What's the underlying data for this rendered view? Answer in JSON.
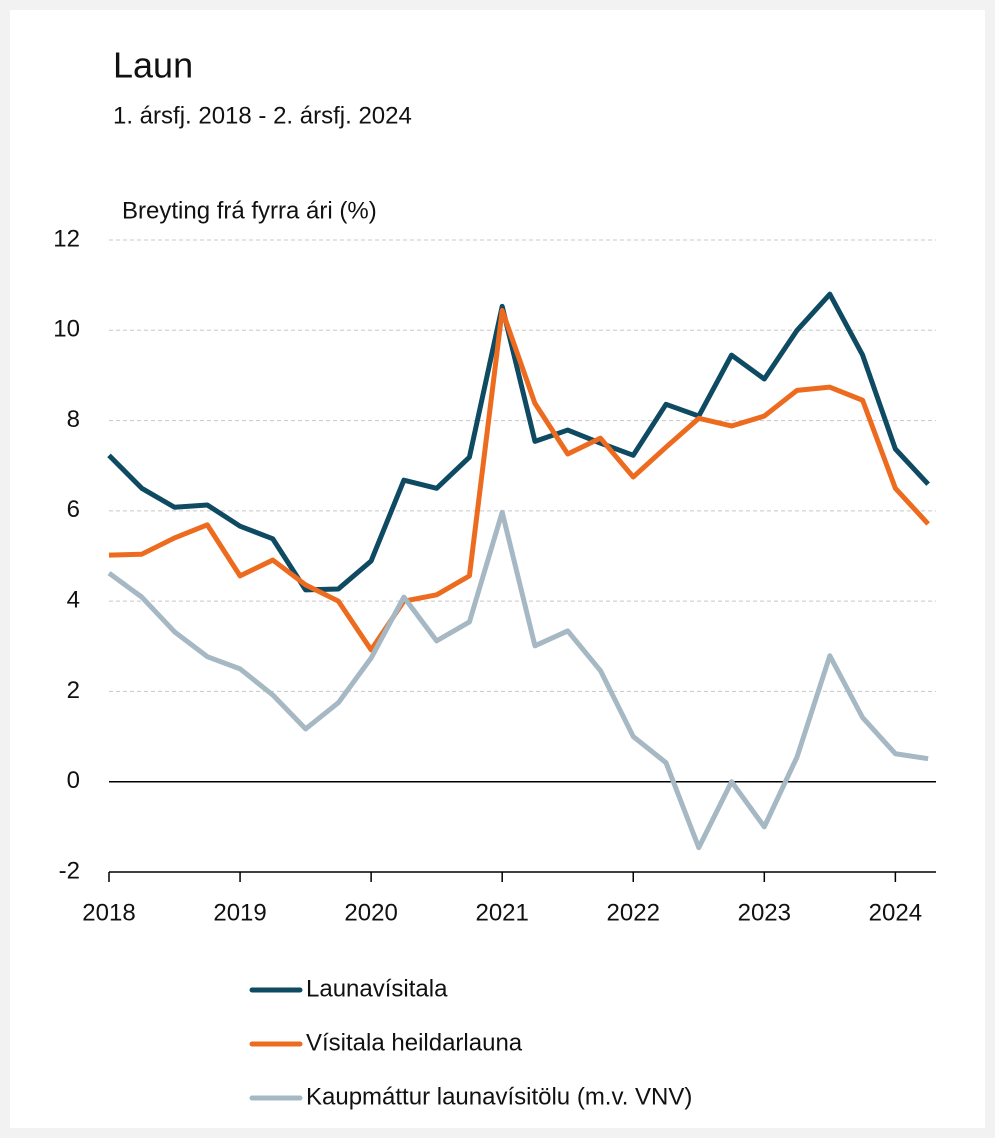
{
  "chart_data": {
    "type": "line",
    "title": "Laun",
    "subtitle": "1. ársfj. 2018 - 2. ársfj. 2024",
    "y_axis_label": "Breyting frá fyrra ári (%)",
    "x": [
      2018,
      2018.25,
      2018.5,
      2018.75,
      2019,
      2019.25,
      2019.5,
      2019.75,
      2020,
      2020.25,
      2020.5,
      2020.75,
      2021,
      2021.25,
      2021.5,
      2021.75,
      2022,
      2022.25,
      2022.5,
      2022.75,
      2023,
      2023.25,
      2023.5,
      2023.75,
      2024,
      2024.25
    ],
    "series": [
      {
        "name": "Launavísitala",
        "color": "#0e4a62",
        "values": [
          7.23,
          6.5,
          6.08,
          6.13,
          5.66,
          5.38,
          4.25,
          4.27,
          4.89,
          6.68,
          6.5,
          7.19,
          10.53,
          7.54,
          7.79,
          7.5,
          7.23,
          8.36,
          8.1,
          9.45,
          8.92,
          10.0,
          10.8,
          9.45,
          7.37,
          6.59
        ]
      },
      {
        "name": "Vísitala heildarlauna",
        "color": "#ed6b1f",
        "values": [
          5.02,
          5.04,
          5.4,
          5.69,
          4.56,
          4.91,
          4.36,
          4.0,
          2.92,
          4.0,
          4.14,
          4.56,
          10.44,
          8.38,
          7.26,
          7.61,
          6.75,
          7.41,
          8.05,
          7.88,
          8.1,
          8.67,
          8.74,
          8.45,
          6.5,
          5.71
        ]
      },
      {
        "name": "Kaupmáttur launavísitölu (m.v. VNV)",
        "color": "#a5b8c3",
        "values": [
          4.62,
          4.09,
          3.32,
          2.77,
          2.5,
          1.92,
          1.17,
          1.75,
          2.74,
          4.09,
          3.12,
          3.54,
          5.97,
          3.01,
          3.34,
          2.46,
          1.0,
          0.42,
          -1.46,
          0.0,
          -1.0,
          0.55,
          2.79,
          1.42,
          0.62,
          0.51
        ]
      }
    ],
    "xlim": [
      2018,
      2024.31
    ],
    "xticks": [
      2018,
      2019,
      2020,
      2021,
      2022,
      2023,
      2024
    ],
    "ylim": [
      -2,
      12
    ],
    "yticks": [
      -2,
      0,
      2,
      4,
      6,
      8,
      10,
      12
    ],
    "grid": true
  }
}
